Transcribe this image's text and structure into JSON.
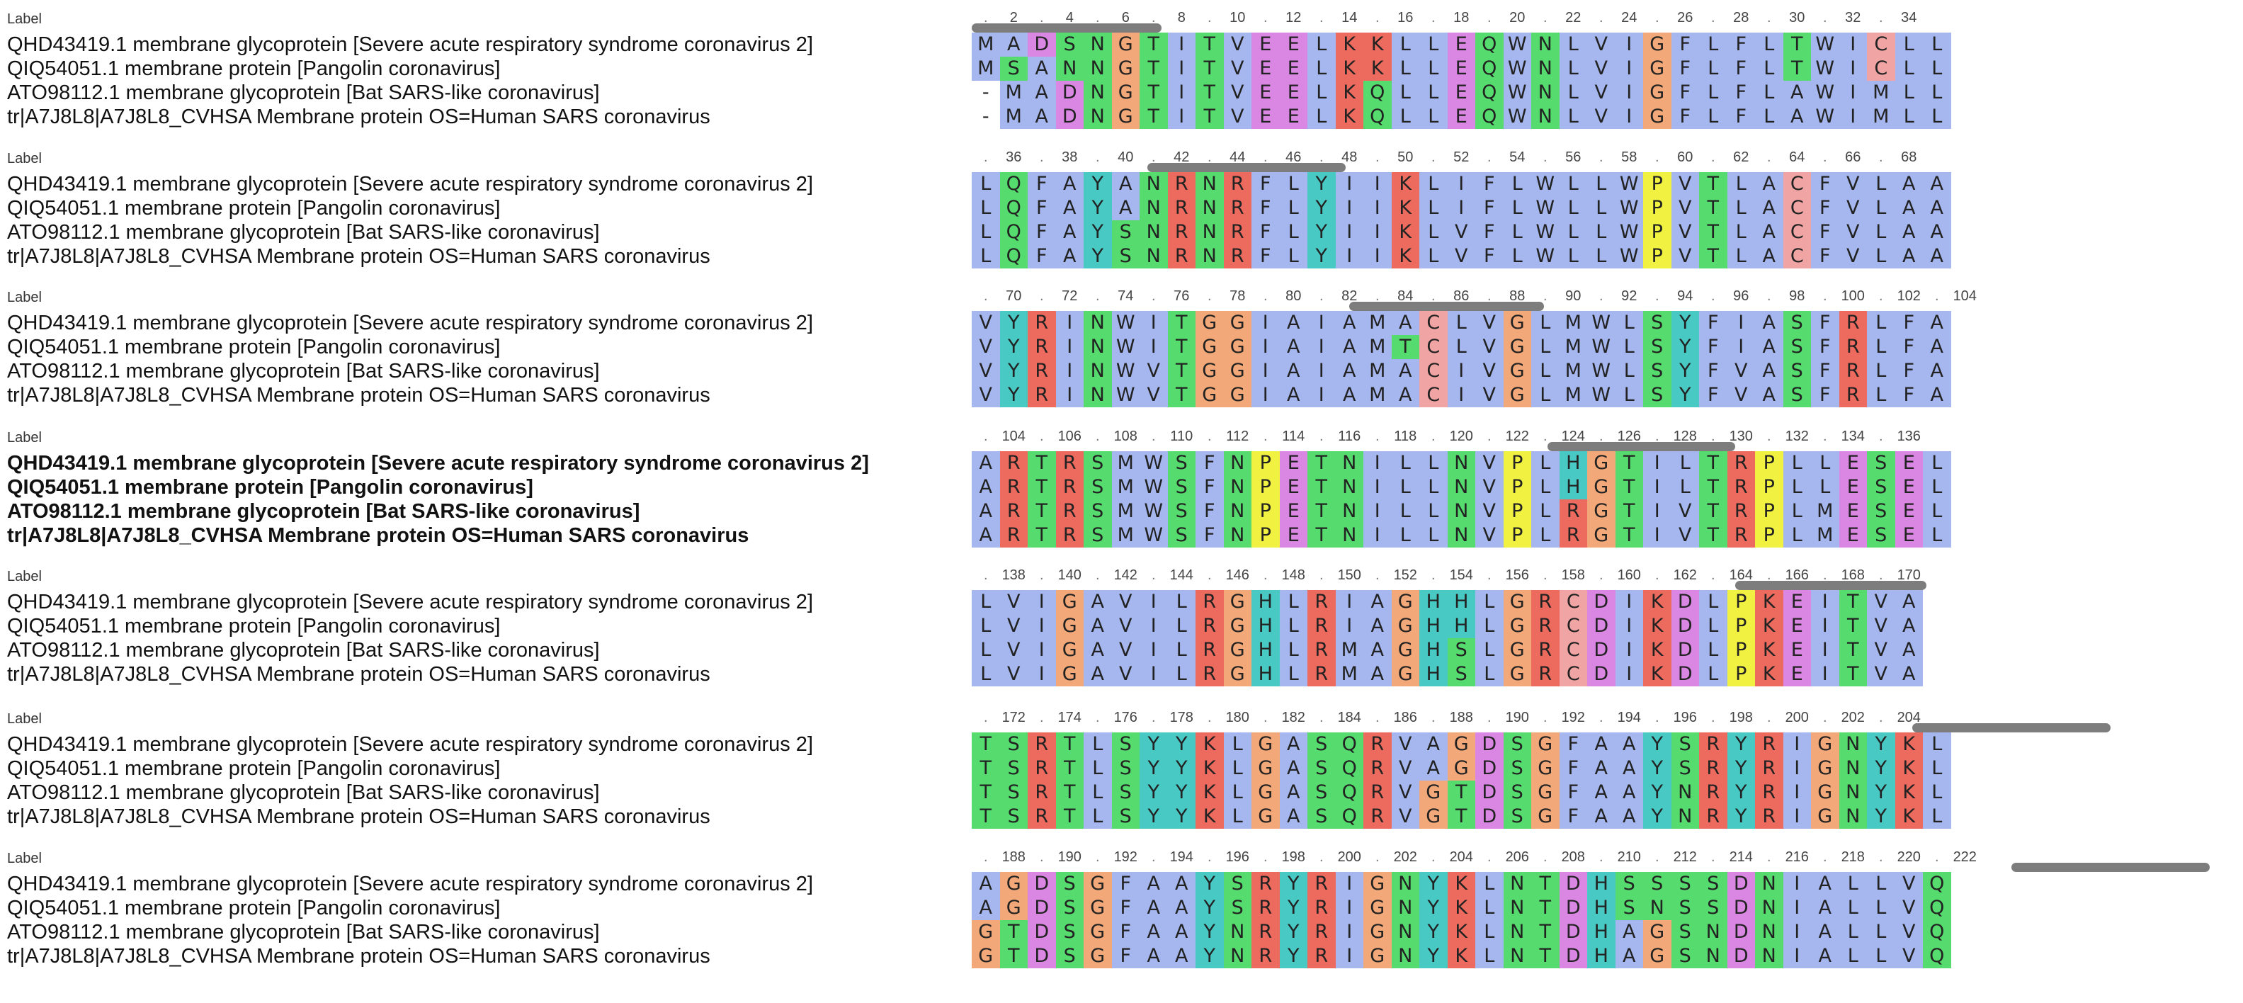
{
  "block_label": "Label",
  "colors": {
    "A": "#a5b7ee",
    "I": "#a5b7ee",
    "L": "#a5b7ee",
    "M": "#a5b7ee",
    "F": "#a5b7ee",
    "W": "#a5b7ee",
    "V": "#a5b7ee",
    "R": "#ec6b5e",
    "K": "#ec6b5e",
    "N": "#56dc6e",
    "Q": "#56dc6e",
    "S": "#56dc6e",
    "T": "#56dc6e",
    "D": "#d987e2",
    "E": "#d987e2",
    "G": "#f2a878",
    "P": "#f1f141",
    "H": "#49c9c4",
    "Y": "#49c9c4",
    "C": "#f0a4a4",
    "-": "#ffffff"
  },
  "blocks": [
    {
      "ruler": [
        "2",
        "4",
        "6",
        "8",
        "10",
        "12",
        "14",
        "16",
        "18",
        "20",
        "22",
        "24",
        "26",
        "28",
        "30",
        "32",
        "34"
      ],
      "names": [
        "QHD43419.1 membrane glycoprotein [Severe acute respiratory syndrome coronavirus 2]",
        "QIQ54051.1 membrane protein [Pangolin coronavirus]",
        "ATO98112.1 membrane glycoprotein [Bat SARS-like coronavirus]",
        "tr|A7J8L8|A7J8L8_CVHSA Membrane protein OS=Human SARS coronavirus"
      ],
      "rows": [
        "MADSNGTITVEELKKLLEQWNLVIGFLFLTWICLL",
        "MSANNGTITVEELKKLLEQWNLVIGFLFLTWICLL",
        "-MADNGTITVEELKQLLEQWNLVIGFLFLAWIMLL",
        "-MADNGTITVEELKQLLEQWNLVIGFLFLAWIMLL"
      ],
      "bold": false
    },
    {
      "ruler": [
        "36",
        "38",
        "40",
        "42",
        "44",
        "46",
        "48",
        "50",
        "52",
        "54",
        "56",
        "58",
        "60",
        "62",
        "64",
        "66",
        "68"
      ],
      "names": [
        "QHD43419.1 membrane glycoprotein [Severe acute respiratory syndrome coronavirus 2]",
        "QIQ54051.1 membrane protein [Pangolin coronavirus]",
        "ATO98112.1 membrane glycoprotein [Bat SARS-like coronavirus]",
        "tr|A7J8L8|A7J8L8_CVHSA Membrane protein OS=Human SARS coronavirus"
      ],
      "rows": [
        "LQFAYANRNRFLYIIKLIFLWLLWPVTLACFVLAA",
        "LQFAYANRNRFLYIIKLIFLWLLWPVTLACFVLAA",
        "LQFAYSNRNRFLYIIKLVFLWLLWPVTLACFVLAA",
        "LQFAYSNRNRFLYIIKLVFLWLLWPVTLACFVLAA"
      ],
      "bold": false
    },
    {
      "ruler": [
        "70",
        "72",
        "74",
        "76",
        "78",
        "80",
        "82",
        "84",
        "86",
        "88",
        "90",
        "92",
        "94",
        "96",
        "98",
        "100",
        "102",
        "104"
      ],
      "names": [
        "QHD43419.1 membrane glycoprotein [Severe acute respiratory syndrome coronavirus 2]",
        "QIQ54051.1 membrane protein [Pangolin coronavirus]",
        "ATO98112.1 membrane glycoprotein [Bat SARS-like coronavirus]",
        "tr|A7J8L8|A7J8L8_CVHSA Membrane protein OS=Human SARS coronavirus"
      ],
      "rows": [
        "VYRINWITGGIAIAMACLVGLMWLSYFIASFRLFA",
        "VYRINWITGGIAIAMTCLVGLMWLSYFIASFRLFA",
        "VYRINWVTGGIAIAMACIVGLMWLSYFVASFRLFA",
        "VYRINWVTGGIAIAMACIVGLMWLSYFVASFRLFA"
      ],
      "bold": false
    },
    {
      "ruler": [
        "104",
        "106",
        "108",
        "110",
        "112",
        "114",
        "116",
        "118",
        "120",
        "122",
        "124",
        "126",
        "128",
        "130",
        "132",
        "134",
        "136"
      ],
      "names": [
        "QHD43419.1 membrane glycoprotein [Severe acute respiratory syndrome coronavirus 2]",
        "QIQ54051.1 membrane protein [Pangolin coronavirus]",
        "ATO98112.1 membrane glycoprotein [Bat SARS-like coronavirus]",
        "tr|A7J8L8|A7J8L8_CVHSA Membrane protein OS=Human SARS coronavirus"
      ],
      "rows": [
        "ARTRSMWSFNPETNILLNVPLHGTILTRPLLESEL",
        "ARTRSMWSFNPETNILLNVPLHGTILTRPLLESEL",
        "ARTRSMWSFNPETNILLNVPLRGTIVTRPLMESEL",
        "ARTRSMWSFNPETNILLNVPLRGTIVTRPLMESEL"
      ],
      "bold": true
    },
    {
      "ruler": [
        "138",
        "140",
        "142",
        "144",
        "146",
        "148",
        "150",
        "152",
        "154",
        "156",
        "158",
        "160",
        "162",
        "164",
        "166",
        "168",
        "170"
      ],
      "names": [
        "QHD43419.1 membrane glycoprotein [Severe acute respiratory syndrome coronavirus 2]",
        "QIQ54051.1 membrane protein [Pangolin coronavirus]",
        "ATO98112.1 membrane glycoprotein [Bat SARS-like coronavirus]",
        "tr|A7J8L8|A7J8L8_CVHSA Membrane protein OS=Human SARS coronavirus"
      ],
      "rows": [
        "LVIGAVILRGHLRIAGHHLGRCDIKDLPKEITVA",
        "LVIGAVILRGHLRIAGHHLGRCDIKDLPKEITVA",
        "LVIGAVILRGHLRMAGHSLGRCDIKDLPKEITVA",
        "LVIGAVILRGHLRMAGHSLGRCDIKDLPKEITVA"
      ],
      "bold": false
    },
    {
      "ruler": [
        "172",
        "174",
        "176",
        "178",
        "180",
        "182",
        "184",
        "186",
        "188",
        "190",
        "192",
        "194",
        "196",
        "198",
        "200",
        "202",
        "204"
      ],
      "names": [
        "QHD43419.1 membrane glycoprotein [Severe acute respiratory syndrome coronavirus 2]",
        "QIQ54051.1 membrane protein [Pangolin coronavirus]",
        "ATO98112.1 membrane glycoprotein [Bat SARS-like coronavirus]",
        "tr|A7J8L8|A7J8L8_CVHSA Membrane protein OS=Human SARS coronavirus"
      ],
      "rows": [
        "TSRTLSYYKLGASQRVAGDSGFAAYSRYRIGNYKL",
        "TSRTLSYYKLGASQRVAGDSGFAAYSRYRIGNYKL",
        "TSRTLSYYKLGASQRVGTDSGFAAYNRYRIGNYKL",
        "TSRTLSYYKLGASQRVGTDSGFAAYNRYRIGNYKL"
      ],
      "bold": false
    },
    {
      "ruler": [
        "188",
        "190",
        "192",
        "194",
        "196",
        "198",
        "200",
        "202",
        "204",
        "206",
        "208",
        "210",
        "212",
        "214",
        "216",
        "218",
        "220",
        "222"
      ],
      "names": [
        "QHD43419.1 membrane glycoprotein [Severe acute respiratory syndrome coronavirus 2]",
        "QIQ54051.1 membrane protein [Pangolin coronavirus]",
        "ATO98112.1 membrane glycoprotein [Bat SARS-like coronavirus]",
        "tr|A7J8L8|A7J8L8_CVHSA Membrane protein OS=Human SARS coronavirus"
      ],
      "rows": [
        "AGDSGFAAYSRYRIGNYKLNTDHSSSSDNIALLVQ",
        "AGDSGFAAYSRYRIGNYKLNTDHSNSSDNIALLVQ",
        "GTDSGFAAYNRYRIGNYKLNTDHAGSNDNIALLVQ",
        "GTDSGFAAYNRYRIGNYKLNTDHAGSNDNIALLVQ"
      ],
      "bold": false
    }
  ]
}
